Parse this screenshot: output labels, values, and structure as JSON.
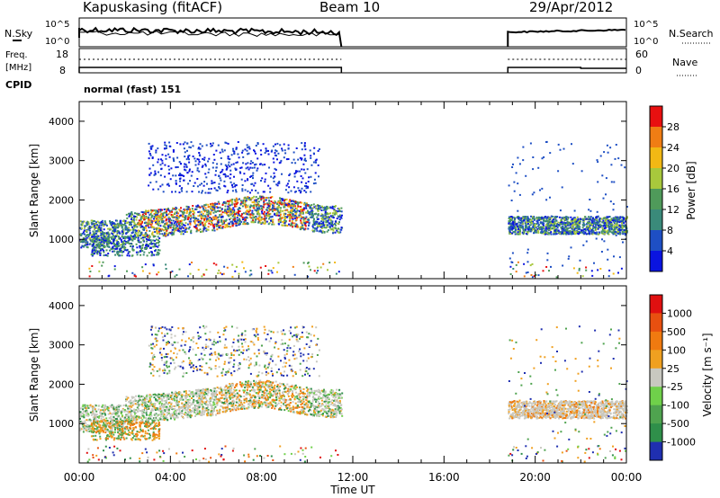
{
  "header": {
    "station": "Kapuskasing (fitACF)",
    "beam": "Beam 10",
    "date": "29/Apr/2012"
  },
  "status_panels": {
    "nsky_label": "N.Sky",
    "nsky_ticks": [
      "10^5",
      "10^0"
    ],
    "nsearch_label": "N.Search",
    "freq_label_1": "Freq.",
    "freq_label_2": "[MHz]",
    "freq_ticks": [
      "18",
      "8"
    ],
    "nave_ticks": [
      "60",
      "0"
    ],
    "nave_label": "Nave",
    "cpid_label": "CPID",
    "cpid_value": "normal (fast) 151"
  },
  "chart_data": [
    {
      "type": "heatmap",
      "panel": "power",
      "ylabel": "Slant Range [km]",
      "ylim": [
        0,
        4500
      ],
      "yticks": [
        "1000",
        "2000",
        "3000",
        "4000"
      ],
      "x_ticks": [
        "00:00",
        "04:00",
        "08:00",
        "12:00",
        "16:00",
        "20:00",
        "00:00"
      ],
      "colorbar_label": "Power [dB]",
      "colorbar_ticks": [
        "28",
        "24",
        "20",
        "16",
        "12",
        "8",
        "4"
      ],
      "colors": [
        "#0a14e0",
        "#1e4fc4",
        "#3a8a7a",
        "#4f9a5a",
        "#a8c83c",
        "#f2b814",
        "#f07d14",
        "#e81010"
      ],
      "data_gaps": [
        [
          11.5,
          18.8
        ]
      ]
    },
    {
      "type": "heatmap",
      "panel": "velocity",
      "ylabel": "Slant Range [km]",
      "xlabel": "Time UT",
      "ylim": [
        0,
        4500
      ],
      "yticks": [
        "1000",
        "2000",
        "3000",
        "4000"
      ],
      "x_ticks": [
        "00:00",
        "04:00",
        "08:00",
        "12:00",
        "16:00",
        "20:00",
        "00:00"
      ],
      "colorbar_label": "Velocity [m s⁻¹]",
      "colorbar_ticks": [
        "1000",
        "500",
        "100",
        "25",
        "-25",
        "-100",
        "-500",
        "-1000"
      ],
      "colors": [
        "#1f2fb0",
        "#2f8f4a",
        "#4fa34f",
        "#6fd04a",
        "#c8c8c0",
        "#f0a020",
        "#f07a10",
        "#e85010",
        "#e01010"
      ],
      "data_gaps": [
        [
          11.5,
          18.8
        ]
      ]
    }
  ]
}
